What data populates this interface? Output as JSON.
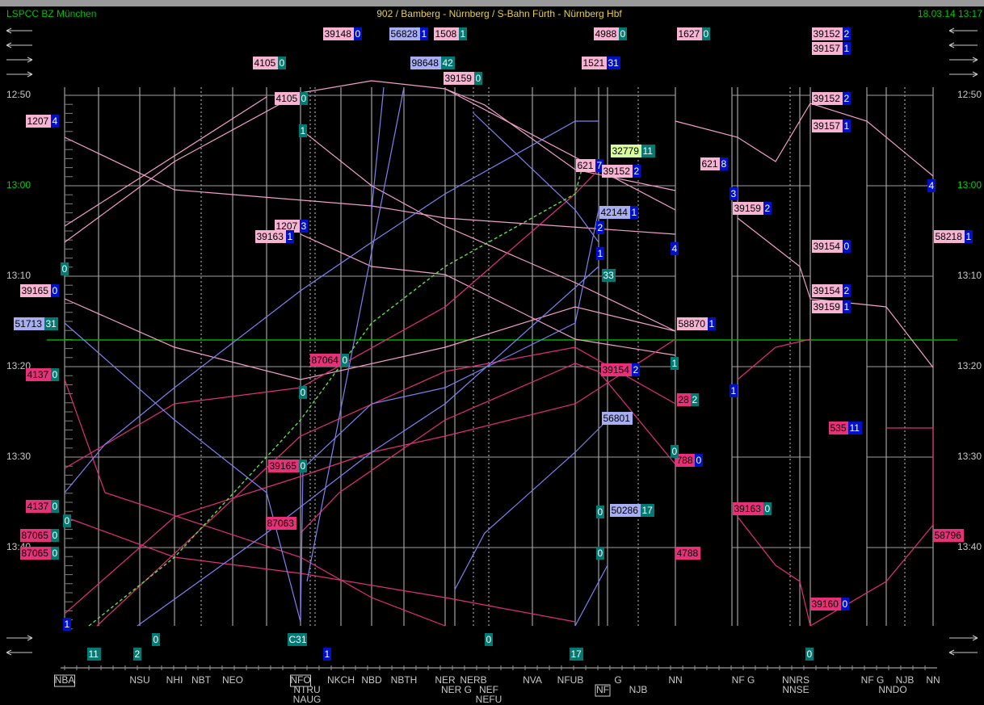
{
  "header": {
    "system": "LSPCC BZ München",
    "title": "902 / Bamberg - Nürnberg / S-Bahn Fürth - Nürnberg Hbf",
    "datetime": "18.03.14 13:17"
  },
  "times": [
    "12:50",
    "13:00",
    "13:10",
    "13:20",
    "13:30",
    "13:40"
  ],
  "stations": [
    "NBA",
    "NSU",
    "NHI",
    "NBT",
    "NEO",
    "NFO",
    "NTRU",
    "NAUG",
    "NKCH",
    "NBD",
    "NBTH",
    "NER",
    "NER G",
    "NERB",
    "NEF",
    "NEFU",
    "NVA",
    "NFUB",
    "NF",
    "G",
    "NJB",
    "NN",
    "NF G",
    "NNRS",
    "NNSE",
    "NF G",
    "NNDO",
    "NJB",
    "NN"
  ],
  "trains": [
    {
      "number": "39148",
      "delay": "0"
    },
    {
      "number": "56828",
      "delay": "1"
    },
    {
      "number": "1508",
      "delay": "1"
    },
    {
      "number": "4988",
      "delay": "0"
    },
    {
      "number": "1627",
      "delay": "0"
    },
    {
      "number": "39152",
      "delay": "2"
    },
    {
      "number": "39157",
      "delay": "1"
    },
    {
      "number": "4105",
      "delay": "0"
    },
    {
      "number": "98648",
      "delay": "42"
    },
    {
      "number": "1521",
      "delay": "31"
    },
    {
      "number": "39159",
      "delay": "0"
    },
    {
      "number": "4105",
      "delay": "0"
    },
    {
      "number": "39152",
      "delay": "2"
    },
    {
      "number": "1207",
      "delay": "4"
    },
    {
      "number": "39157",
      "delay": "1"
    },
    {
      "number": "32779",
      "delay": "11"
    },
    {
      "number": "621",
      "delay": "7"
    },
    {
      "number": "39152",
      "delay": "2"
    },
    {
      "number": "621",
      "delay": "8"
    },
    {
      "number": "39159",
      "delay": "2"
    },
    {
      "number": "42144",
      "delay": "1"
    },
    {
      "number": "1207",
      "delay": "3"
    },
    {
      "number": "39163",
      "delay": "1"
    },
    {
      "number": "58218",
      "delay": "1"
    },
    {
      "number": "39154",
      "delay": "0"
    },
    {
      "number": "39165",
      "delay": "0"
    },
    {
      "number": "39154",
      "delay": "2"
    },
    {
      "number": "39159",
      "delay": "1"
    },
    {
      "number": "51713",
      "delay": "31"
    },
    {
      "number": "58870",
      "delay": "1"
    },
    {
      "number": "87064",
      "delay": "0"
    },
    {
      "number": "39154",
      "delay": "2"
    },
    {
      "number": "4137",
      "delay": "0"
    },
    {
      "number": "28",
      "delay": "2"
    },
    {
      "number": "56801"
    },
    {
      "number": "535",
      "delay": "11"
    },
    {
      "number": "39165",
      "delay": "0"
    },
    {
      "number": "788",
      "delay": "0"
    },
    {
      "number": "4137",
      "delay": "0"
    },
    {
      "number": "39163",
      "delay": "0"
    },
    {
      "number": "50286",
      "delay": "17"
    },
    {
      "number": "87063"
    },
    {
      "number": "87065",
      "delay": "0"
    },
    {
      "number": "58796"
    },
    {
      "number": "87065",
      "delay": "0"
    },
    {
      "number": "4788"
    },
    {
      "number": "39160",
      "delay": "0"
    }
  ],
  "markers": [
    "11",
    "2",
    "0",
    "C31",
    "1",
    "0",
    "17",
    "0",
    "1",
    "1",
    "0",
    "33",
    "1",
    "2",
    "4",
    "4",
    "0",
    "1",
    "0",
    "0",
    "0",
    "0",
    "1",
    "3"
  ]
}
